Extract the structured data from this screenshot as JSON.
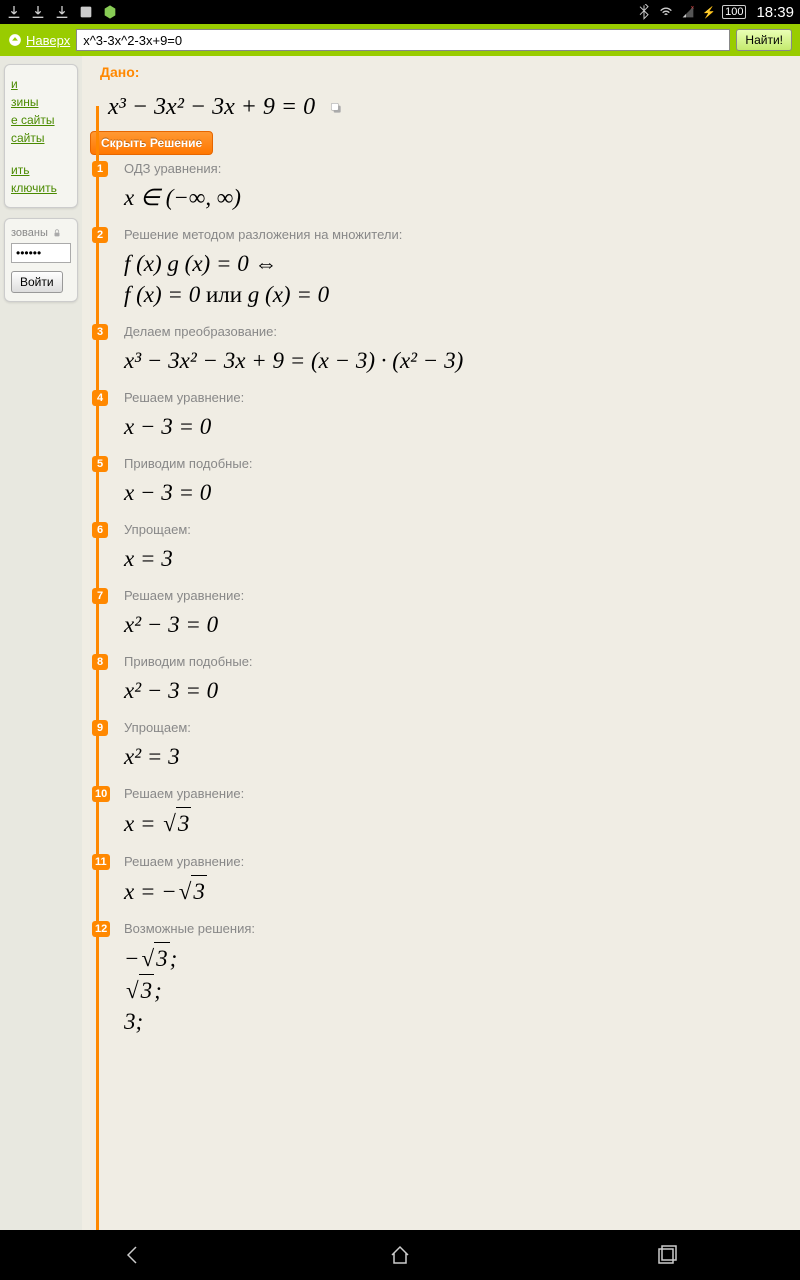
{
  "status": {
    "time": "18:39",
    "battery": "100"
  },
  "search": {
    "up_label": "Наверх",
    "query": "x^3-3x^2-3x+9=0",
    "button": "Найти!"
  },
  "sidebar": {
    "links1": [
      "и",
      "зины",
      "е сайты",
      "сайты"
    ],
    "links2": [
      "ить",
      "ключить"
    ],
    "lock_label": "зованы",
    "password": "••••••",
    "login_btn": "Войти"
  },
  "content": {
    "given_label": "Дано:",
    "main_equation": "x³ − 3x² − 3x + 9 = 0",
    "hide_btn": "Скрыть Решение",
    "steps": [
      {
        "num": "1",
        "label": "ОДЗ уравнения:",
        "eq": "x ∈  (−∞, ∞)"
      },
      {
        "num": "2",
        "label": "Решение методом разложения на множители:",
        "eq": "f (x) g (x) = 0  ⇔<br>f (x) = 0 <span class='upright'>или</span> g (x) = 0"
      },
      {
        "num": "3",
        "label": "Делаем преобразование:",
        "eq": "x³ − 3x² − 3x + 9 = (x − 3) · (x² − 3)"
      },
      {
        "num": "4",
        "label": "Решаем уравнение:",
        "eq": "x − 3 = 0"
      },
      {
        "num": "5",
        "label": "Приводим подобные:",
        "eq": "x − 3 = 0"
      },
      {
        "num": "6",
        "label": "Упрощаем:",
        "eq": "x = 3"
      },
      {
        "num": "7",
        "label": "Решаем уравнение:",
        "eq": "x² − 3 = 0"
      },
      {
        "num": "8",
        "label": "Приводим подобные:",
        "eq": "x² − 3 = 0"
      },
      {
        "num": "9",
        "label": "Упрощаем:",
        "eq": "x² = 3"
      },
      {
        "num": "10",
        "label": "Решаем уравнение:",
        "eq": "x = <span class='sqrt'><span class='sqrt-inner'>3</span></span>"
      },
      {
        "num": "11",
        "label": "Решаем уравнение:",
        "eq": "x = −<span class='sqrt'><span class='sqrt-inner'>3</span></span>"
      },
      {
        "num": "12",
        "label": "Возможные решения:",
        "eq": "−<span class='sqrt'><span class='sqrt-inner'>3</span></span>;<br><span class='sqrt'><span class='sqrt-inner'>3</span></span>;<br>3;"
      }
    ]
  }
}
